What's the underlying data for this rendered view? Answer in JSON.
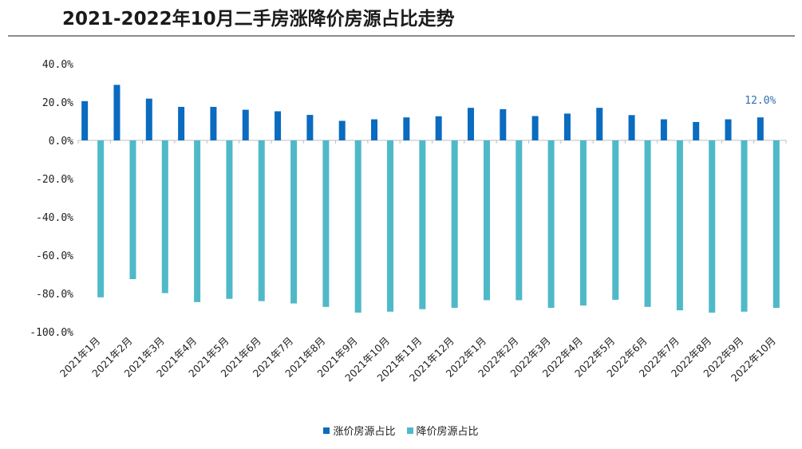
{
  "colors": {
    "up": "#0a6bbf",
    "down": "#4fb9c8",
    "axis": "#bfbfbf"
  },
  "chart_data": {
    "type": "bar",
    "title": "2021-2022年10月二手房涨降价房源占比走势",
    "categories": [
      "2021年1月",
      "2021年2月",
      "2021年3月",
      "2021年4月",
      "2021年5月",
      "2021年6月",
      "2021年7月",
      "2021年8月",
      "2021年9月",
      "2021年10月",
      "2021年11月",
      "2021年12月",
      "2022年1月",
      "2022年2月",
      "2022年3月",
      "2022年4月",
      "2022年5月",
      "2022年6月",
      "2022年7月",
      "2022年8月",
      "2022年9月",
      "2022年10月"
    ],
    "series": [
      {
        "name": "涨价房源占比",
        "values": [
          20.5,
          29.0,
          21.8,
          17.5,
          17.5,
          16.0,
          15.2,
          13.3,
          10.2,
          11.0,
          12.0,
          12.6,
          17.0,
          16.3,
          12.7,
          14.0,
          17.0,
          13.2,
          11.0,
          9.6,
          11.0,
          12.0
        ]
      },
      {
        "name": "降价房源占比",
        "values": [
          -82.0,
          -72.5,
          -79.8,
          -84.5,
          -82.8,
          -84.0,
          -85.2,
          -87.0,
          -90.0,
          -89.5,
          -88.2,
          -87.5,
          -83.5,
          -83.5,
          -87.5,
          -86.3,
          -83.3,
          -87.0,
          -88.8,
          -90.0,
          -89.5,
          -87.5
        ]
      }
    ],
    "ylim": [
      -100,
      40
    ],
    "yticks": [
      "40.0%",
      "20.0%",
      "0.0%",
      "-20.0%",
      "-40.0%",
      "-60.0%",
      "-80.0%",
      "-100.0%"
    ],
    "ytick_values": [
      40,
      20,
      0,
      -20,
      -40,
      -60,
      -80,
      -100
    ],
    "annotations": [
      {
        "label": "12.0%",
        "category": "2022年10月",
        "series": "涨价房源占比"
      }
    ],
    "grid": false,
    "legend_position": "bottom"
  }
}
